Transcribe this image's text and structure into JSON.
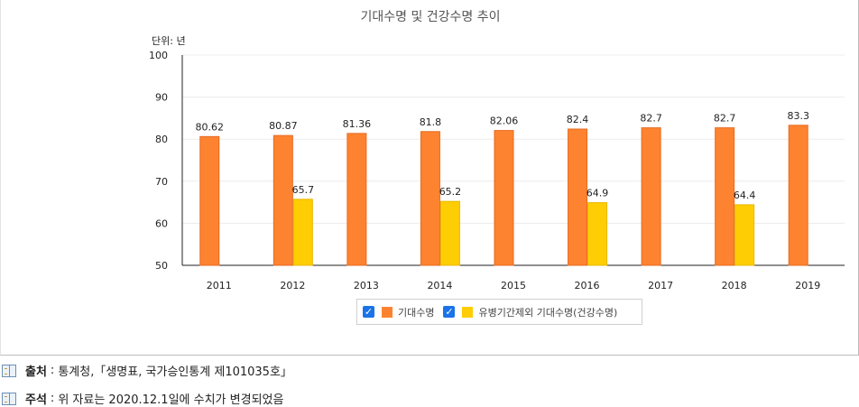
{
  "colors": {
    "series1": "#fe8330",
    "series2": "#fecd03",
    "checkbox": "#1a73e8"
  },
  "icons": {
    "footer": "book-icon",
    "check": "checkmark-icon"
  },
  "chart_data": {
    "type": "bar",
    "title": "기대수명 및 건강수명 추이",
    "unit_label": "단위: 년",
    "categories": [
      "2011",
      "2012",
      "2013",
      "2014",
      "2015",
      "2016",
      "2017",
      "2018",
      "2019"
    ],
    "ylim": [
      50,
      100
    ],
    "yticks": [
      50,
      60,
      70,
      80,
      90,
      100
    ],
    "grid": true,
    "legend_position": "bottom",
    "series": [
      {
        "name": "기대수명",
        "values": [
          80.62,
          80.87,
          81.36,
          81.8,
          82.06,
          82.4,
          82.7,
          82.7,
          83.3
        ]
      },
      {
        "name": "유병기간제외 기대수명(건강수명)",
        "values": [
          null,
          65.7,
          null,
          65.2,
          null,
          64.9,
          null,
          64.4,
          null
        ]
      }
    ]
  },
  "footer": {
    "source_label": "출처",
    "source_text": "통계청,「생명표, 국가승인통계 제101035호」",
    "note_label": "주석",
    "note_text": "위 자료는 2020.12.1일에 수치가 변경되었음"
  }
}
